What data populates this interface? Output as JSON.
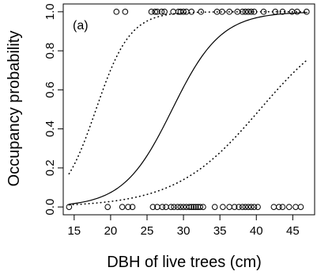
{
  "chart_data": {
    "type": "scatter",
    "panel_label": "(a)",
    "xlabel": "DBH of live trees (cm)",
    "ylabel": "Occupancy probability",
    "xlim": [
      13.5,
      48
    ],
    "ylim": [
      -0.04,
      1.04
    ],
    "xticks": [
      15,
      20,
      25,
      30,
      35,
      40,
      45
    ],
    "yticks": [
      0.0,
      0.2,
      0.4,
      0.6,
      0.8,
      1.0
    ],
    "ytick_labels": [
      "0.0",
      "0.2",
      "0.4",
      "0.6",
      "0.8",
      "1.0"
    ],
    "observations_present": {
      "y": 1,
      "x": [
        20.8,
        22.0,
        25.6,
        26.1,
        26.4,
        27.0,
        27.4,
        28.6,
        29.3,
        29.6,
        30.0,
        30.4,
        31.1,
        32.4,
        34.6,
        35.3,
        36.3,
        37.4,
        38.1,
        38.5,
        38.9,
        39.3,
        39.7,
        41.0,
        42.6,
        43.6,
        44.9,
        45.6,
        46.9
      ]
    },
    "observations_absent": {
      "y": 0,
      "x": [
        14.3,
        19.6,
        21.6,
        22.4,
        23.0,
        25.8,
        26.4,
        27.1,
        27.6,
        28.3,
        28.7,
        29.2,
        29.6,
        30.0,
        30.4,
        30.8,
        31.1,
        31.4,
        31.7,
        32.0,
        32.3,
        32.7,
        34.3,
        35.4,
        36.3,
        37.0,
        37.6,
        38.1,
        38.5,
        38.9,
        39.3,
        39.7,
        40.2,
        42.4,
        43.1,
        43.6,
        44.5,
        45.4,
        46.1
      ]
    },
    "fitted_curve": {
      "style": "solid",
      "intercept": -8.5,
      "slope": 0.2987
    },
    "ci_upper": {
      "style": "dotted",
      "intercept": -7.71,
      "slope": 0.4283
    },
    "ci_lower": {
      "style": "dotted",
      "intercept": -7.0,
      "slope": 0.1728
    },
    "grid": false
  }
}
